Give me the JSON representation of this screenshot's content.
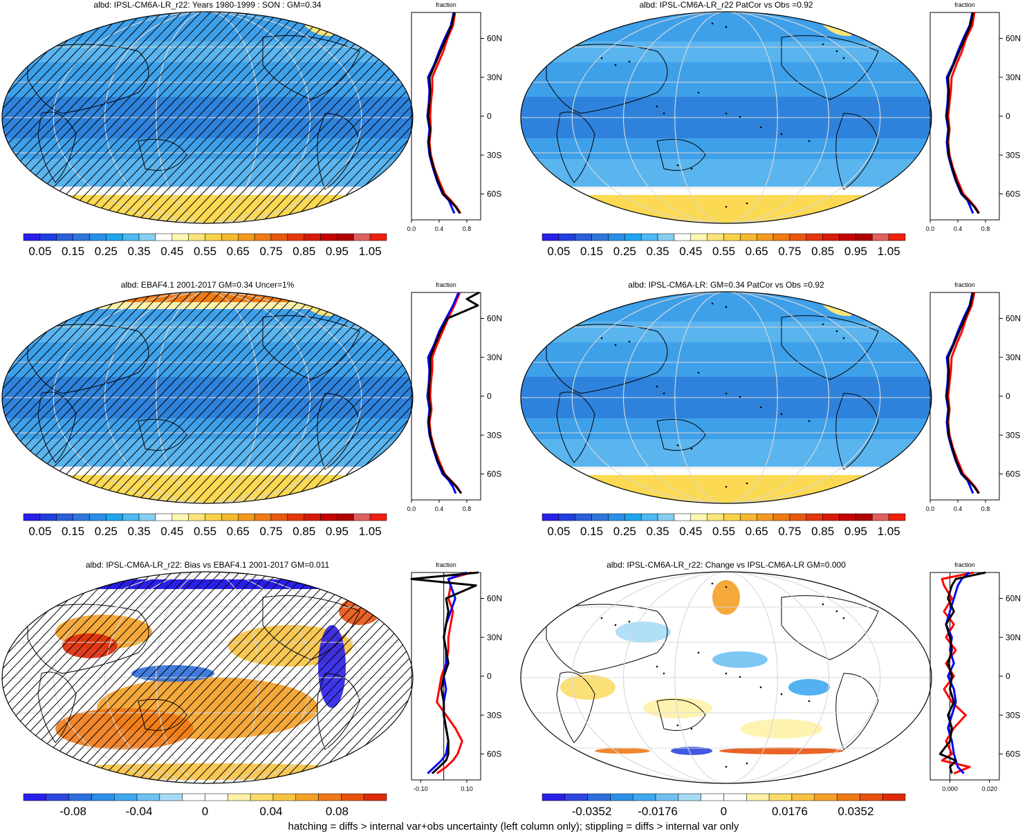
{
  "chart_data": [
    {
      "type": "heatmap",
      "title": "albd: IPSL-CM6A-LR_r22: Years 1980-1999 : SON : GM=0.34",
      "colorbar_labels": [
        "0.05",
        "0.15",
        "0.25",
        "0.35",
        "0.45",
        "0.55",
        "0.65",
        "0.75",
        "0.85",
        "0.95",
        "1.05"
      ],
      "colorbar_range": [
        0.0,
        1.1
      ],
      "scheme": "seq",
      "hatching": true,
      "profile": {
        "xlabel": "fraction",
        "xticks": [
          "0.0",
          "0.4",
          "0.8"
        ],
        "xlim": [
          0,
          1
        ],
        "yticks": [
          "60N",
          "30N",
          "0",
          "30S",
          "60S"
        ],
        "lat": [
          80,
          70,
          60,
          50,
          40,
          30,
          20,
          10,
          0,
          -10,
          -20,
          -30,
          -40,
          -50,
          -60,
          -65,
          -70,
          -75
        ],
        "series": [
          {
            "name": "",
            "color": "#000000",
            "values": [
              0.62,
              0.58,
              0.5,
              0.42,
              0.34,
              0.26,
              0.27,
              0.26,
              0.24,
              0.27,
              0.25,
              0.27,
              0.32,
              0.38,
              0.46,
              0.55,
              0.64,
              0.7
            ]
          },
          {
            "name": "",
            "color": "#ff0000",
            "values": [
              0.63,
              0.6,
              0.52,
              0.46,
              0.38,
              0.3,
              0.3,
              0.28,
              0.27,
              0.28,
              0.26,
              0.28,
              0.33,
              0.4,
              0.48,
              0.57,
              0.65,
              0.71
            ]
          },
          {
            "name": "",
            "color": "#0000ff",
            "values": [
              0.61,
              0.57,
              0.48,
              0.4,
              0.33,
              0.24,
              0.26,
              0.25,
              0.23,
              0.26,
              0.24,
              0.26,
              0.31,
              0.37,
              0.45,
              0.54,
              0.58,
              0.62
            ]
          }
        ]
      }
    },
    {
      "type": "heatmap",
      "title": "albd: IPSL-CM6A-LR_r22 PatCor vs Obs =0.92",
      "colorbar_labels": [
        "0.05",
        "0.15",
        "0.25",
        "0.35",
        "0.45",
        "0.55",
        "0.65",
        "0.75",
        "0.85",
        "0.95",
        "1.05"
      ],
      "colorbar_range": [
        0.0,
        1.1
      ],
      "scheme": "seq",
      "hatching": false,
      "profile": {
        "xlabel": "fraction",
        "xticks": [
          "0.0",
          "0.4",
          "0.8"
        ],
        "xlim": [
          0,
          1
        ],
        "yticks": [
          "60N",
          "30N",
          "0",
          "30S",
          "60S"
        ],
        "lat": [
          80,
          70,
          60,
          50,
          40,
          30,
          20,
          10,
          0,
          -10,
          -20,
          -30,
          -40,
          -50,
          -60,
          -65,
          -70,
          -75
        ],
        "series": [
          {
            "name": "",
            "color": "#000000",
            "values": [
              0.62,
              0.58,
              0.5,
              0.42,
              0.34,
              0.26,
              0.27,
              0.26,
              0.24,
              0.27,
              0.25,
              0.27,
              0.32,
              0.38,
              0.46,
              0.55,
              0.64,
              0.7
            ]
          },
          {
            "name": "",
            "color": "#ff0000",
            "values": [
              0.64,
              0.61,
              0.52,
              0.46,
              0.38,
              0.31,
              0.3,
              0.28,
              0.26,
              0.28,
              0.26,
              0.28,
              0.33,
              0.4,
              0.48,
              0.57,
              0.65,
              0.71
            ]
          },
          {
            "name": "",
            "color": "#0000ff",
            "values": [
              0.61,
              0.57,
              0.48,
              0.4,
              0.33,
              0.24,
              0.26,
              0.25,
              0.23,
              0.26,
              0.24,
              0.26,
              0.31,
              0.37,
              0.45,
              0.54,
              0.58,
              0.62
            ]
          }
        ]
      }
    },
    {
      "type": "heatmap",
      "title": "albd: EBAF4.1 2001-2017 GM=0.34 Uncer=1%",
      "colorbar_labels": [
        "0.05",
        "0.15",
        "0.25",
        "0.35",
        "0.45",
        "0.55",
        "0.65",
        "0.75",
        "0.85",
        "0.95",
        "1.05"
      ],
      "colorbar_range": [
        0.0,
        1.1
      ],
      "scheme": "seq",
      "hatching": true,
      "profile": {
        "xlabel": "fraction",
        "xticks": [
          "0.0",
          "0.4",
          "0.8"
        ],
        "xlim": [
          0,
          1
        ],
        "yticks": [
          "60N",
          "30N",
          "0",
          "30S",
          "60S"
        ],
        "lat": [
          80,
          75,
          70,
          60,
          50,
          40,
          30,
          20,
          10,
          0,
          -10,
          -20,
          -30,
          -40,
          -50,
          -60,
          -65,
          -70,
          -75
        ],
        "series": [
          {
            "name": "",
            "color": "#000000",
            "values": [
              0.98,
              0.8,
              0.96,
              0.52,
              0.42,
              0.34,
              0.27,
              0.27,
              0.26,
              0.25,
              0.27,
              0.25,
              0.27,
              0.32,
              0.38,
              0.47,
              0.56,
              0.65,
              0.72
            ]
          },
          {
            "name": "",
            "color": "#ff0000",
            "values": [
              0.7,
              0.66,
              0.62,
              0.53,
              0.45,
              0.37,
              0.3,
              0.3,
              0.28,
              0.27,
              0.29,
              0.26,
              0.28,
              0.33,
              0.4,
              0.48,
              0.57,
              0.66,
              0.72
            ]
          },
          {
            "name": "",
            "color": "#0000ff",
            "values": [
              0.68,
              0.64,
              0.6,
              0.5,
              0.4,
              0.33,
              0.24,
              0.26,
              0.25,
              0.23,
              0.26,
              0.24,
              0.26,
              0.31,
              0.37,
              0.45,
              0.54,
              0.6,
              0.64
            ]
          }
        ]
      }
    },
    {
      "type": "heatmap",
      "title": "albd: IPSL-CM6A-LR: GM=0.34 PatCor vs Obs =0.92",
      "colorbar_labels": [
        "0.05",
        "0.15",
        "0.25",
        "0.35",
        "0.45",
        "0.55",
        "0.65",
        "0.75",
        "0.85",
        "0.95",
        "1.05"
      ],
      "colorbar_range": [
        0.0,
        1.1
      ],
      "scheme": "seq",
      "hatching": false,
      "profile": {
        "xlabel": "fraction",
        "xticks": [
          "0.0",
          "0.4",
          "0.8"
        ],
        "xlim": [
          0,
          1
        ],
        "yticks": [
          "60N",
          "30N",
          "0",
          "30S",
          "60S"
        ],
        "lat": [
          80,
          70,
          60,
          50,
          40,
          30,
          20,
          10,
          0,
          -10,
          -20,
          -30,
          -40,
          -50,
          -60,
          -65,
          -70,
          -75
        ],
        "series": [
          {
            "name": "",
            "color": "#000000",
            "values": [
              0.62,
              0.58,
              0.5,
              0.42,
              0.34,
              0.26,
              0.27,
              0.26,
              0.24,
              0.27,
              0.25,
              0.27,
              0.32,
              0.38,
              0.46,
              0.55,
              0.64,
              0.7
            ]
          },
          {
            "name": "",
            "color": "#ff0000",
            "values": [
              0.64,
              0.6,
              0.52,
              0.46,
              0.38,
              0.31,
              0.3,
              0.28,
              0.26,
              0.28,
              0.26,
              0.28,
              0.33,
              0.4,
              0.48,
              0.57,
              0.65,
              0.71
            ]
          },
          {
            "name": "",
            "color": "#0000ff",
            "values": [
              0.61,
              0.57,
              0.48,
              0.4,
              0.33,
              0.24,
              0.26,
              0.25,
              0.23,
              0.26,
              0.24,
              0.26,
              0.31,
              0.37,
              0.45,
              0.54,
              0.58,
              0.62
            ]
          }
        ]
      }
    },
    {
      "type": "heatmap",
      "title": "albd: IPSL-CM6A-LR_r22: Bias vs EBAF4.1 2001-2017  GM=0.011",
      "colorbar_labels": [
        "-0.08",
        "-0.04",
        "0",
        "0.04",
        "0.08"
      ],
      "colorbar_range": [
        -0.11,
        0.11
      ],
      "scheme": "div",
      "hatching": true,
      "profile": {
        "xlabel": "fraction",
        "xticks": [
          "-0.10",
          "0.10"
        ],
        "xlim": [
          -0.14,
          0.16
        ],
        "xtick_values": [
          -0.1,
          0.1
        ],
        "yticks": [
          "60N",
          "30N",
          "0",
          "30S",
          "60S"
        ],
        "lat": [
          80,
          75,
          70,
          60,
          50,
          40,
          30,
          20,
          10,
          0,
          -10,
          -20,
          -30,
          -40,
          -50,
          -60,
          -65,
          -70,
          -75
        ],
        "series": [
          {
            "name": "",
            "color": "#000000",
            "values": [
              0.15,
              -0.14,
              0.14,
              0.01,
              0.02,
              0.01,
              0.0,
              0.01,
              0.02,
              0.0,
              -0.01,
              0.0,
              0.0,
              0.01,
              0.02,
              0.02,
              0.01,
              -0.02,
              -0.05
            ]
          },
          {
            "name": "",
            "color": "#ff0000",
            "values": [
              0.12,
              0.02,
              0.03,
              0.02,
              0.04,
              0.03,
              0.02,
              0.02,
              0.01,
              -0.01,
              -0.02,
              -0.03,
              0.01,
              0.05,
              0.08,
              0.06,
              0.04,
              0.01,
              -0.03
            ]
          },
          {
            "name": "",
            "color": "#0000ff",
            "values": [
              0.1,
              0.02,
              0.03,
              0.05,
              0.03,
              0.01,
              0.0,
              0.01,
              0.01,
              0.0,
              0.01,
              0.0,
              0.0,
              0.01,
              0.02,
              0.01,
              -0.01,
              -0.04,
              -0.07
            ]
          }
        ]
      }
    },
    {
      "type": "heatmap",
      "title": "albd: IPSL-CM6A-LR_r22: Change vs IPSL-CM6A-LR GM=0.000",
      "colorbar_labels": [
        "-0.0352",
        "-0.0176",
        "0",
        "0.0176",
        "0.0352"
      ],
      "colorbar_range": [
        -0.0484,
        0.0484
      ],
      "scheme": "div",
      "hatching": false,
      "profile": {
        "xlabel": "fraction",
        "xticks": [
          "0.000",
          "0.020"
        ],
        "xlim": [
          -0.01,
          0.025
        ],
        "xtick_values": [
          0.0,
          0.02
        ],
        "yticks": [
          "60N",
          "30N",
          "0",
          "30S",
          "60S"
        ],
        "lat": [
          80,
          75,
          70,
          60,
          50,
          40,
          30,
          20,
          10,
          0,
          -10,
          -20,
          -30,
          -40,
          -50,
          -60,
          -65,
          -70,
          -75
        ],
        "series": [
          {
            "name": "",
            "color": "#000000",
            "values": [
              0.018,
              0.003,
              0.001,
              -0.001,
              0.002,
              -0.002,
              0.0,
              0.001,
              -0.001,
              0.001,
              0.0,
              0.002,
              -0.001,
              0.001,
              0.0,
              -0.005,
              0.003,
              0.0,
              0.001
            ]
          },
          {
            "name": "",
            "color": "#ff0000",
            "values": [
              0.012,
              -0.004,
              -0.003,
              0.001,
              -0.003,
              0.002,
              -0.002,
              0.003,
              -0.002,
              0.002,
              -0.003,
              0.001,
              0.008,
              0.002,
              -0.002,
              0.001,
              -0.004,
              0.01,
              0.002
            ]
          },
          {
            "name": "",
            "color": "#0000ff",
            "values": [
              0.01,
              0.006,
              0.004,
              0.002,
              0.0,
              -0.002,
              0.001,
              0.0,
              0.002,
              -0.001,
              0.002,
              0.003,
              0.001,
              -0.001,
              0.001,
              0.002,
              0.003,
              0.004,
              0.007
            ]
          }
        ]
      }
    }
  ],
  "footnote": "hatching = diffs > internal var+obs uncertainty (left column only); stippling = diffs > internal var only"
}
